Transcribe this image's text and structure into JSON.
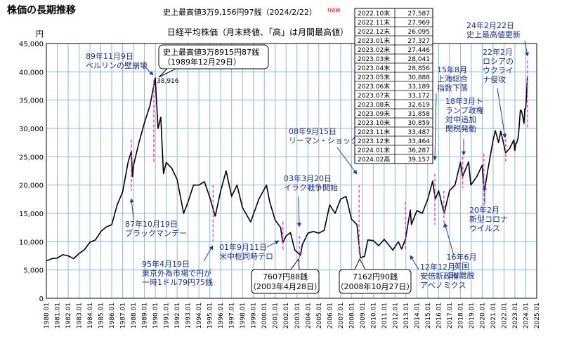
{
  "page_title": "株価の長期推移",
  "record_note": "史上最高値3万9,156円97銭（2024/2/22）",
  "record_note_new": "new",
  "subtitle": "日経平均株価（月末終値、「高」は月間最高値）",
  "colors": {
    "price_line": "#000000",
    "grid": "#8fb6df",
    "marker": "#ff33cc",
    "arrow": "#1f3d99",
    "callout_text": "#1e2f8c",
    "title_text": "#000000",
    "new_text": "#ff0000"
  },
  "table": {
    "rows": [
      [
        "2022.10末",
        "27,587"
      ],
      [
        "2022.11末",
        "27,969"
      ],
      [
        "2022.12末",
        "26,095"
      ],
      [
        "2023.01末",
        "27,327"
      ],
      [
        "2023.02末",
        "27,446"
      ],
      [
        "2023.03末",
        "28,041"
      ],
      [
        "2023.04末",
        "28,856"
      ],
      [
        "2023.05末",
        "30,888"
      ],
      [
        "2023.06末",
        "33,189"
      ],
      [
        "2023.07末",
        "33,172"
      ],
      [
        "2023.08末",
        "32,619"
      ],
      [
        "2023.09末",
        "31,858"
      ],
      [
        "2023.10末",
        "30,859"
      ],
      [
        "2023.11末",
        "33,487"
      ],
      [
        "2023.12末",
        "33,464"
      ],
      [
        "2024.01末",
        "36,287"
      ],
      [
        "2024.02高",
        "39,157"
      ]
    ]
  },
  "chart_data": {
    "type": "line",
    "title": "日経平均株価（月末終値、「高」は月間最高値）",
    "ylabel": "円",
    "ylim": [
      0,
      45000
    ],
    "xlim": [
      1980.0,
      2025.0
    ],
    "yticks": [
      "0",
      "5,000",
      "10,000",
      "15,000",
      "20,000",
      "25,000",
      "30,000",
      "35,000",
      "40,000",
      "45,000"
    ],
    "xticks": [
      "1980.01",
      "1981.01",
      "1982.01",
      "1983.01",
      "1984.01",
      "1985.01",
      "1986.01",
      "1987.01",
      "1988.01",
      "1989.01",
      "1990.01",
      "1991.01",
      "1992.01",
      "1993.01",
      "1994.01",
      "1995.01",
      "1996.01",
      "1997.01",
      "1998.01",
      "1999.01",
      "2000.01",
      "2001.01",
      "2002.01",
      "2003.01",
      "2004.01",
      "2005.01",
      "2006.01",
      "2007.01",
      "2008.01",
      "2009.01",
      "2010.01",
      "2011.01",
      "2012.01",
      "2013.01",
      "2014.01",
      "2015.01",
      "2016.01",
      "2017.01",
      "2018.01",
      "2019.01",
      "2020.01",
      "2021.01",
      "2022.01",
      "2023.01",
      "2024.01",
      "2025.01"
    ],
    "grid": true,
    "series": [
      {
        "values": [
          [
            1980.0,
            6600
          ],
          [
            1980.5,
            7000
          ],
          [
            1981.0,
            7100
          ],
          [
            1981.5,
            7700
          ],
          [
            1982.0,
            7500
          ],
          [
            1982.5,
            7000
          ],
          [
            1983.0,
            7900
          ],
          [
            1983.5,
            8600
          ],
          [
            1984.0,
            9900
          ],
          [
            1984.5,
            10300
          ],
          [
            1985.0,
            11800
          ],
          [
            1985.5,
            12600
          ],
          [
            1986.0,
            13000
          ],
          [
            1986.5,
            16500
          ],
          [
            1987.0,
            18800
          ],
          [
            1987.5,
            24000
          ],
          [
            1987.8,
            26000
          ],
          [
            1987.9,
            21500
          ],
          [
            1988.0,
            23500
          ],
          [
            1988.5,
            27500
          ],
          [
            1989.0,
            31000
          ],
          [
            1989.5,
            34000
          ],
          [
            1989.99,
            38916
          ],
          [
            1990.25,
            30000
          ],
          [
            1990.5,
            32000
          ],
          [
            1990.75,
            22000
          ],
          [
            1991.0,
            24000
          ],
          [
            1991.5,
            23000
          ],
          [
            1992.0,
            21000
          ],
          [
            1992.6,
            15000
          ],
          [
            1993.0,
            17000
          ],
          [
            1993.5,
            20000
          ],
          [
            1994.0,
            20000
          ],
          [
            1994.5,
            20600
          ],
          [
            1995.0,
            17800
          ],
          [
            1995.5,
            14500
          ],
          [
            1996.0,
            19000
          ],
          [
            1996.5,
            22500
          ],
          [
            1997.0,
            18000
          ],
          [
            1997.5,
            20000
          ],
          [
            1998.0,
            16000
          ],
          [
            1998.75,
            13500
          ],
          [
            1999.5,
            17500
          ],
          [
            2000.2,
            20000
          ],
          [
            2000.5,
            17000
          ],
          [
            2001.0,
            13800
          ],
          [
            2001.5,
            12500
          ],
          [
            2001.7,
            9800
          ],
          [
            2002.0,
            11000
          ],
          [
            2002.4,
            11600
          ],
          [
            2002.8,
            8500
          ],
          [
            2003.32,
            7608
          ],
          [
            2003.5,
            9500
          ],
          [
            2004.0,
            11500
          ],
          [
            2004.5,
            11800
          ],
          [
            2005.0,
            11500
          ],
          [
            2005.5,
            12000
          ],
          [
            2006.0,
            16500
          ],
          [
            2006.5,
            15000
          ],
          [
            2007.0,
            17500
          ],
          [
            2007.5,
            18000
          ],
          [
            2008.0,
            14000
          ],
          [
            2008.5,
            13000
          ],
          [
            2008.82,
            7162
          ],
          [
            2009.2,
            7400
          ],
          [
            2009.5,
            10300
          ],
          [
            2010.0,
            10200
          ],
          [
            2010.5,
            9300
          ],
          [
            2011.0,
            10400
          ],
          [
            2011.3,
            9700
          ],
          [
            2011.8,
            8500
          ],
          [
            2012.3,
            10000
          ],
          [
            2012.6,
            8700
          ],
          [
            2012.95,
            10400
          ],
          [
            2013.4,
            15600
          ],
          [
            2013.5,
            13000
          ],
          [
            2014.0,
            15500
          ],
          [
            2014.5,
            15000
          ],
          [
            2015.0,
            17500
          ],
          [
            2015.45,
            20700
          ],
          [
            2015.7,
            17500
          ],
          [
            2016.0,
            19000
          ],
          [
            2016.5,
            15000
          ],
          [
            2017.0,
            19000
          ],
          [
            2017.5,
            20000
          ],
          [
            2018.0,
            24000
          ],
          [
            2018.2,
            21500
          ],
          [
            2018.75,
            24100
          ],
          [
            2018.95,
            20000
          ],
          [
            2019.5,
            21500
          ],
          [
            2020.0,
            23500
          ],
          [
            2020.2,
            18900
          ],
          [
            2020.5,
            22500
          ],
          [
            2021.0,
            28000
          ],
          [
            2021.2,
            29600
          ],
          [
            2021.5,
            27500
          ],
          [
            2021.7,
            29500
          ],
          [
            2022.0,
            27000
          ],
          [
            2022.15,
            25700
          ],
          [
            2022.5,
            26400
          ],
          [
            2022.8,
            27587
          ],
          [
            2022.9,
            27969
          ],
          [
            2022.99,
            26095
          ],
          [
            2023.08,
            27327
          ],
          [
            2023.16,
            27446
          ],
          [
            2023.25,
            28041
          ],
          [
            2023.33,
            28856
          ],
          [
            2023.41,
            30888
          ],
          [
            2023.5,
            33189
          ],
          [
            2023.58,
            33172
          ],
          [
            2023.66,
            32619
          ],
          [
            2023.75,
            31858
          ],
          [
            2023.83,
            30859
          ],
          [
            2023.91,
            33487
          ],
          [
            2023.99,
            33464
          ],
          [
            2024.08,
            36287
          ],
          [
            2024.15,
            39157
          ]
        ]
      }
    ],
    "annotations": [
      {
        "lines": [
          "89年11月9日",
          "ベルリンの壁崩壊"
        ]
      },
      {
        "lines": [
          "史上最高値3万8915円87銭",
          "（1989年12月29日）"
        ]
      },
      {
        "lines": [
          "38,916"
        ]
      },
      {
        "lines": [
          "87年10月19日",
          "ブラックマンデー"
        ]
      },
      {
        "lines": [
          "95年4月19日",
          "東京外為市場で円が",
          "一時1ドル79円75銭"
        ]
      },
      {
        "lines": [
          "01年9月11日",
          "米中枢同時テロ"
        ]
      },
      {
        "lines": [
          "03年3月20日",
          "イラク戦争開始"
        ]
      },
      {
        "lines": [
          "7607円88銭",
          "（2003年4月28日）"
        ]
      },
      {
        "lines": [
          "08年9月15日",
          "リーマン・ショック"
        ]
      },
      {
        "lines": [
          "7162円90銭",
          "（2008年10月27日）"
        ]
      },
      {
        "lines": [
          "12年12月",
          "安倍新政権",
          "アベノミクス"
        ]
      },
      {
        "lines": [
          "15年8月",
          "上海総合",
          "指数下落"
        ]
      },
      {
        "lines": [
          "16年6月",
          "英国",
          "EU離脱"
        ]
      },
      {
        "lines": [
          "18年3月ト",
          "ランプ政権",
          "対中追加",
          "関税発動"
        ]
      },
      {
        "lines": [
          "20年2月",
          "新型コロナ",
          "ウイルス"
        ]
      },
      {
        "lines": [
          "22年2月",
          "ロシアの",
          "ウクライ",
          "ナ侵攻"
        ]
      },
      {
        "lines": [
          "24年2月22日",
          "史上最高値更新"
        ]
      }
    ]
  }
}
